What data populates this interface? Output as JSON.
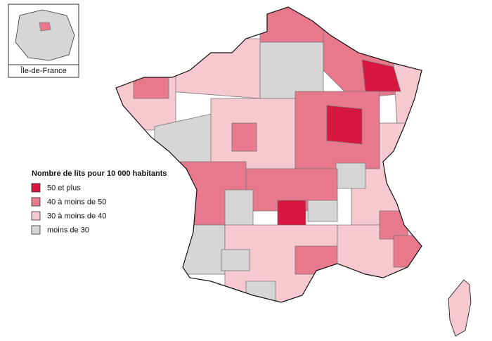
{
  "inset": {
    "label": "Île-de-France"
  },
  "legend": {
    "title": "Nombre de lits pour 10 000 habitants",
    "items": [
      {
        "label": "50 et plus",
        "color": "#d7173f"
      },
      {
        "label": "40 à moins de 50",
        "color": "#e8788c"
      },
      {
        "label": "30 à moins de 40",
        "color": "#f6c8d0"
      },
      {
        "label": "moins de 30",
        "color": "#d6d6d6"
      }
    ]
  }
}
